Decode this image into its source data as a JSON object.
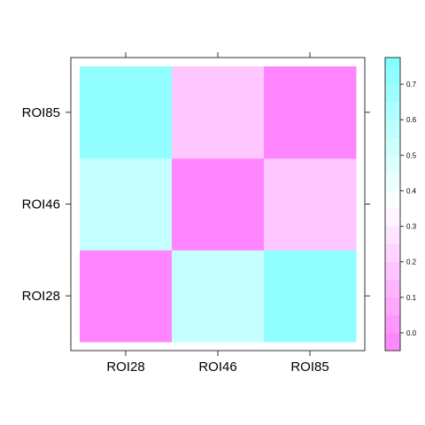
{
  "chart_data": {
    "type": "heatmap",
    "x_categories": [
      "ROI28",
      "ROI46",
      "ROI85"
    ],
    "y_categories": [
      "ROI28",
      "ROI46",
      "ROI85"
    ],
    "values": [
      [
        -0.03,
        0.55,
        0.72
      ],
      [
        0.55,
        -0.03,
        0.18
      ],
      [
        0.72,
        0.18,
        -0.03
      ]
    ],
    "color_scale": {
      "min": -0.05,
      "max": 0.775,
      "step": 0.05,
      "low_color": "#FF80FF",
      "mid_color": "#FFFFFF",
      "high_color": "#80FFFF",
      "ticks": [
        0.0,
        0.1,
        0.2,
        0.3,
        0.4,
        0.5,
        0.6,
        0.7
      ],
      "tick_labels": [
        "0.0",
        "0.1",
        "0.2",
        "0.3",
        "0.4",
        "0.5",
        "0.6",
        "0.7"
      ]
    },
    "title": "",
    "xlabel": "",
    "ylabel": ""
  }
}
